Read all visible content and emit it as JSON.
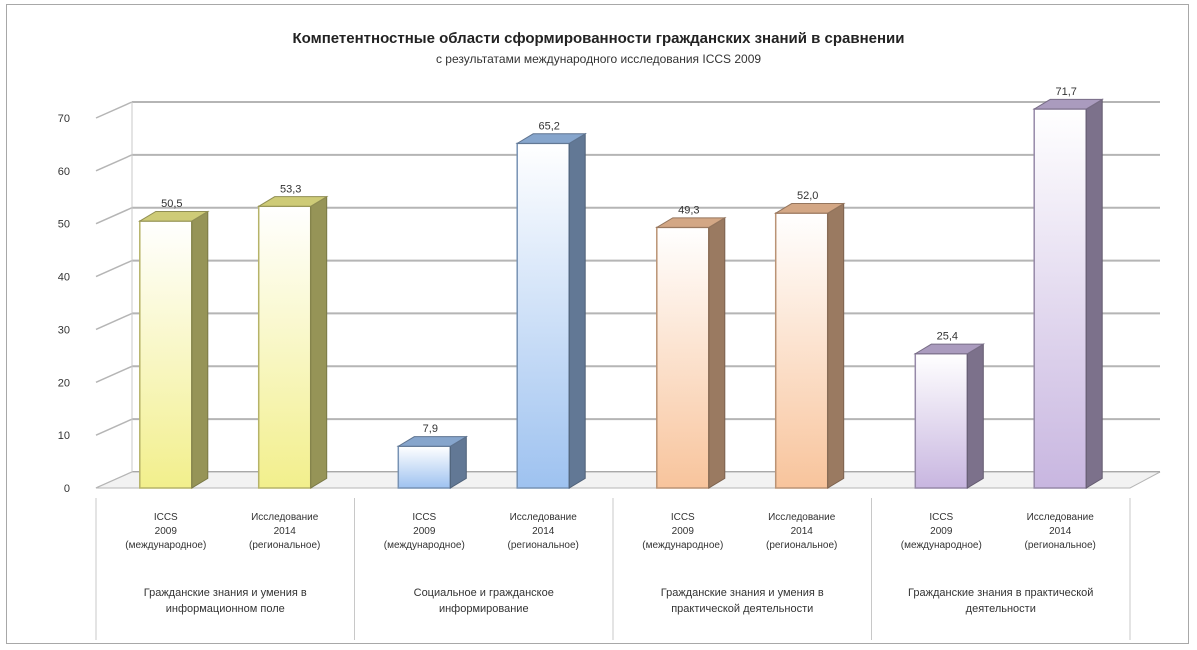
{
  "chart_data": {
    "type": "bar",
    "title": "Компетентностные области сформированности гражданских знаний в сравнении",
    "subtitle": "с результатами международного исследования ICCS 2009",
    "y_ticks": [
      "0",
      "10",
      "20",
      "30",
      "40",
      "50",
      "60",
      "70"
    ],
    "ylim": [
      0,
      70
    ],
    "grid": true,
    "groups": [
      {
        "label": "Гражданские знания и умения в информационном поле",
        "bars": [
          {
            "category": "ICCS 2009",
            "value": 50.5,
            "label": "50,5"
          },
          {
            "category": "Исследование 2014",
            "value": 53.3,
            "label": "53,3"
          }
        ],
        "color": "#f2ef8c"
      },
      {
        "label": "Социальное и гражданское информирование",
        "bars": [
          {
            "category": "ICCS 2009",
            "value": 7.9,
            "label": "7,9"
          },
          {
            "category": "Исследование 2014",
            "value": 65.2,
            "label": "65,2"
          }
        ],
        "color": "#9ec2f0"
      },
      {
        "label": "Гражданские знания и умения в практической деятельности",
        "bars": [
          {
            "category": "ICCS 2009",
            "value": 49.3,
            "label": "49,3"
          },
          {
            "category": "Исследование 2014",
            "value": 52.0,
            "label": "52,0"
          }
        ],
        "color": "#f8c49c"
      },
      {
        "label": "Гражданские знания в практической деятельности",
        "bars": [
          {
            "category": "ICCS 2009",
            "value": 25.4,
            "label": "25,4"
          },
          {
            "category": "Исследование 2014",
            "value": 71.7,
            "label": "71,7"
          }
        ],
        "color": "#c8b6e0"
      }
    ],
    "category_labels": {
      "first": [
        "ICCS",
        "2009",
        "(международное)"
      ],
      "second": [
        "Исследование",
        "2014",
        "(региональное)"
      ]
    }
  }
}
